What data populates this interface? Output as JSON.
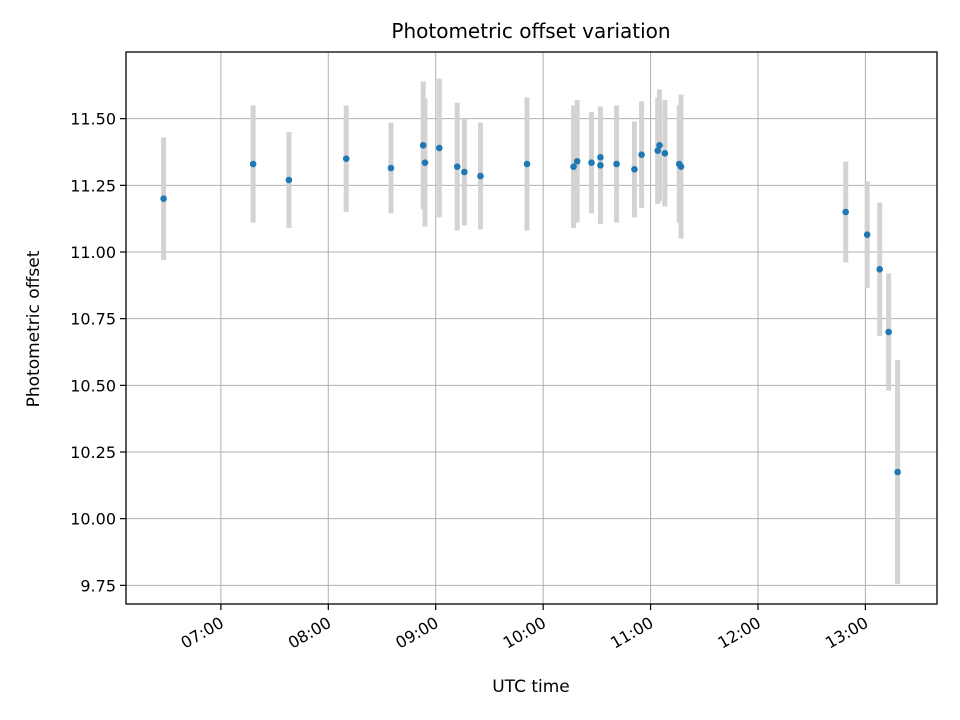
{
  "chart_data": {
    "type": "scatter",
    "title": "Photometric offset variation",
    "xlabel": "UTC time",
    "ylabel": "Photometric offset",
    "x_unit": "time of day (UTC, HH:MM)",
    "xlim": [
      "06:07",
      "13:40"
    ],
    "ylim": [
      9.68,
      11.75
    ],
    "x_ticks": [
      "07:00",
      "08:00",
      "09:00",
      "10:00",
      "11:00",
      "12:00",
      "13:00"
    ],
    "y_ticks": [
      "9.75",
      "10.00",
      "10.25",
      "10.50",
      "10.75",
      "11.00",
      "11.25",
      "11.50"
    ],
    "grid": true,
    "legend": "none",
    "colors": {
      "marker": "#1f77b4",
      "errorbar": "#d3d3d3",
      "grid": "#b0b0b0",
      "axes": "#000000"
    },
    "points": [
      {
        "x": "06:28",
        "y": 11.2,
        "err": 0.23
      },
      {
        "x": "07:18",
        "y": 11.33,
        "err": 0.22
      },
      {
        "x": "07:38",
        "y": 11.27,
        "err": 0.18
      },
      {
        "x": "08:10",
        "y": 11.35,
        "err": 0.2
      },
      {
        "x": "08:35",
        "y": 11.315,
        "err": 0.17
      },
      {
        "x": "08:53",
        "y": 11.4,
        "err": 0.24
      },
      {
        "x": "08:54",
        "y": 11.335,
        "err": 0.24
      },
      {
        "x": "09:02",
        "y": 11.39,
        "err": 0.26
      },
      {
        "x": "09:12",
        "y": 11.32,
        "err": 0.24
      },
      {
        "x": "09:16",
        "y": 11.3,
        "err": 0.2
      },
      {
        "x": "09:25",
        "y": 11.285,
        "err": 0.2
      },
      {
        "x": "09:51",
        "y": 11.33,
        "err": 0.25
      },
      {
        "x": "10:17",
        "y": 11.32,
        "err": 0.23
      },
      {
        "x": "10:19",
        "y": 11.34,
        "err": 0.23
      },
      {
        "x": "10:27",
        "y": 11.335,
        "err": 0.19
      },
      {
        "x": "10:32",
        "y": 11.355,
        "err": 0.19
      },
      {
        "x": "10:32",
        "y": 11.325,
        "err": 0.22
      },
      {
        "x": "10:41",
        "y": 11.33,
        "err": 0.22
      },
      {
        "x": "10:51",
        "y": 11.31,
        "err": 0.18
      },
      {
        "x": "10:55",
        "y": 11.365,
        "err": 0.2
      },
      {
        "x": "11:04",
        "y": 11.38,
        "err": 0.2
      },
      {
        "x": "11:05",
        "y": 11.4,
        "err": 0.21
      },
      {
        "x": "11:08",
        "y": 11.37,
        "err": 0.2
      },
      {
        "x": "11:16",
        "y": 11.33,
        "err": 0.22
      },
      {
        "x": "11:17",
        "y": 11.32,
        "err": 0.27
      },
      {
        "x": "12:49",
        "y": 11.15,
        "err": 0.19
      },
      {
        "x": "13:01",
        "y": 11.065,
        "err": 0.2
      },
      {
        "x": "13:08",
        "y": 10.935,
        "err": 0.25
      },
      {
        "x": "13:13",
        "y": 10.7,
        "err": 0.22
      },
      {
        "x": "13:18",
        "y": 10.175,
        "err": 0.42
      }
    ]
  }
}
